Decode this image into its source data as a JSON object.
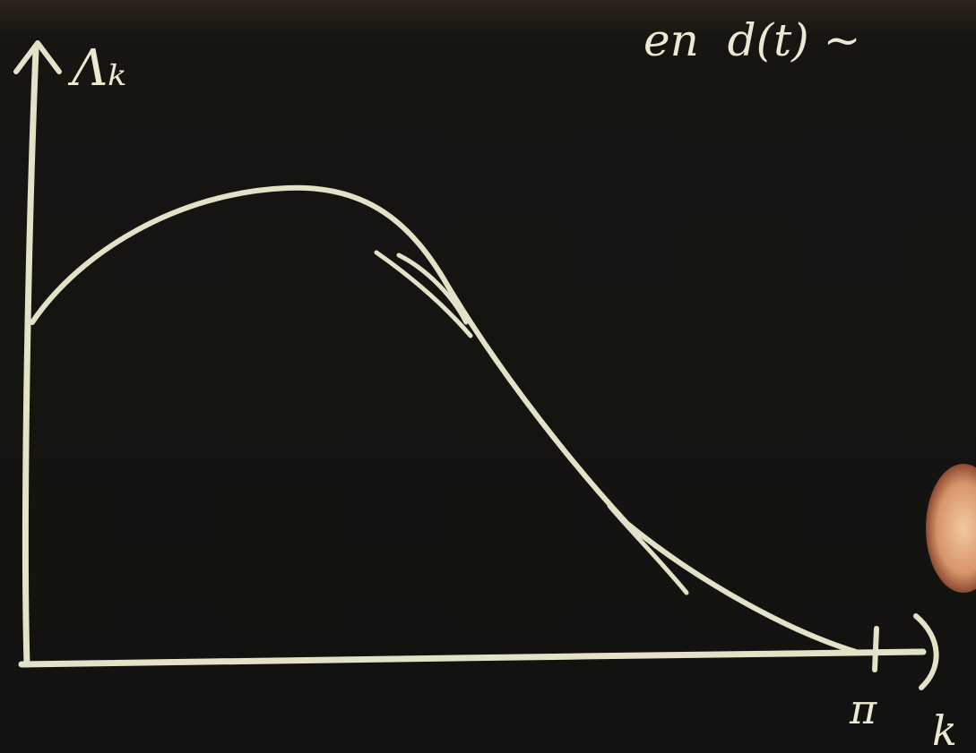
{
  "board": {
    "writing": "en  d(t) ~"
  },
  "sketch": {
    "y_axis_label": "Λₖ",
    "x_axis_label": "k",
    "x_tick_label": "π"
  }
}
